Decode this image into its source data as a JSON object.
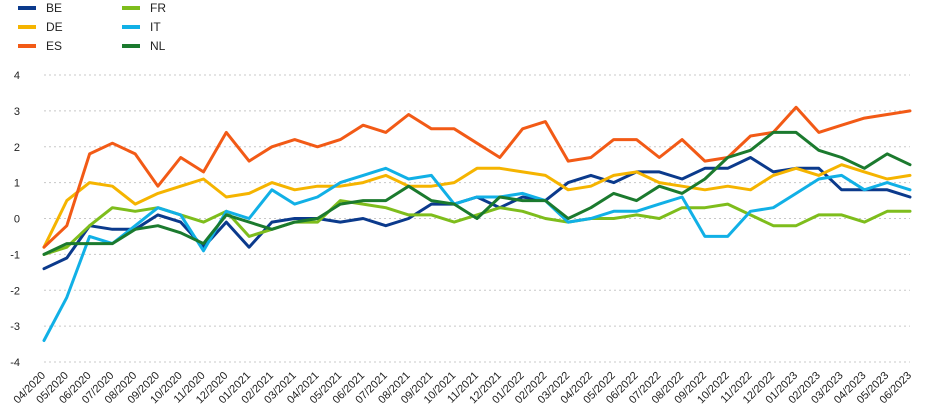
{
  "chart_data": {
    "type": "line",
    "title": "",
    "xlabel": "",
    "ylabel": "",
    "ylim": [
      -4,
      4
    ],
    "yticks": [
      4,
      3,
      2,
      1,
      0,
      -1,
      -2,
      -3,
      -4
    ],
    "grid": "horizontal dashed",
    "legend_position": "top-left",
    "x": [
      "04/2020",
      "05/2020",
      "06/2020",
      "07/2020",
      "08/2020",
      "09/2020",
      "10/2020",
      "11/2020",
      "12/2020",
      "01/2021",
      "02/2021",
      "03/2021",
      "04/2021",
      "05/2021",
      "06/2021",
      "07/2021",
      "08/2021",
      "09/2021",
      "10/2021",
      "11/2021",
      "12/2021",
      "01/2022",
      "02/2022",
      "03/2022",
      "04/2022",
      "05/2022",
      "06/2022",
      "07/2022",
      "08/2022",
      "09/2022",
      "10/2022",
      "11/2022",
      "12/2022",
      "01/2023",
      "02/2023",
      "03/2023",
      "04/2023",
      "05/2023",
      "06/2023"
    ],
    "x_labels_every": 1,
    "series": [
      {
        "name": "BE",
        "color": "#0b3a8c",
        "values": [
          -1.4,
          -1.1,
          -0.2,
          -0.3,
          -0.3,
          0.1,
          -0.1,
          -0.8,
          -0.1,
          -0.8,
          -0.1,
          0.0,
          0.0,
          -0.1,
          0.0,
          -0.2,
          0.0,
          0.4,
          0.4,
          0.6,
          0.3,
          0.6,
          0.5,
          1.0,
          1.2,
          1.0,
          1.3,
          1.3,
          1.1,
          1.4,
          1.4,
          1.7,
          1.3,
          1.4,
          1.4,
          0.8,
          0.8,
          0.8,
          0.6
        ]
      },
      {
        "name": "DE",
        "color": "#f5b400",
        "values": [
          -0.8,
          0.5,
          1.0,
          0.9,
          0.4,
          0.7,
          0.9,
          1.1,
          0.6,
          0.7,
          1.0,
          0.8,
          0.9,
          0.9,
          1.0,
          1.2,
          0.9,
          0.9,
          1.0,
          1.4,
          1.4,
          1.3,
          1.2,
          0.8,
          0.9,
          1.2,
          1.3,
          1.0,
          0.9,
          0.8,
          0.9,
          0.8,
          1.2,
          1.4,
          1.2,
          1.5,
          1.3,
          1.1,
          1.2
        ]
      },
      {
        "name": "ES",
        "color": "#f25a16",
        "values": [
          -0.8,
          -0.2,
          1.8,
          2.1,
          1.8,
          0.9,
          1.7,
          1.3,
          2.4,
          1.6,
          2.0,
          2.2,
          2.0,
          2.2,
          2.6,
          2.4,
          2.9,
          2.5,
          2.5,
          2.1,
          1.7,
          2.5,
          2.7,
          1.6,
          1.7,
          2.2,
          2.2,
          1.7,
          2.2,
          1.6,
          1.7,
          2.3,
          2.4,
          3.1,
          2.4,
          2.6,
          2.8,
          2.9,
          3.0
        ]
      },
      {
        "name": "FR",
        "color": "#7ebd1c",
        "values": [
          -1.0,
          -0.8,
          -0.2,
          0.3,
          0.2,
          0.3,
          0.1,
          -0.1,
          0.2,
          -0.5,
          -0.3,
          -0.1,
          -0.1,
          0.5,
          0.4,
          0.3,
          0.1,
          0.1,
          -0.1,
          0.1,
          0.3,
          0.2,
          0.0,
          -0.1,
          0.0,
          0.0,
          0.1,
          0.0,
          0.3,
          0.3,
          0.4,
          0.1,
          -0.2,
          -0.2,
          0.1,
          0.1,
          -0.1,
          0.2,
          0.2
        ]
      },
      {
        "name": "IT",
        "color": "#11b0e6",
        "values": [
          -3.4,
          -2.2,
          -0.5,
          -0.7,
          -0.2,
          0.3,
          0.1,
          -0.9,
          0.2,
          0.0,
          0.8,
          0.4,
          0.6,
          1.0,
          1.2,
          1.4,
          1.1,
          1.2,
          0.4,
          0.6,
          0.6,
          0.7,
          0.5,
          -0.1,
          0.0,
          0.2,
          0.2,
          0.4,
          0.6,
          -0.5,
          -0.5,
          0.2,
          0.3,
          0.7,
          1.1,
          1.2,
          0.8,
          1.0,
          0.8
        ]
      },
      {
        "name": "NL",
        "color": "#1b7a2e",
        "values": [
          -1.0,
          -0.7,
          -0.7,
          -0.7,
          -0.3,
          -0.2,
          -0.4,
          -0.7,
          0.1,
          -0.1,
          -0.3,
          -0.1,
          0.0,
          0.4,
          0.5,
          0.5,
          0.9,
          0.5,
          0.4,
          0.0,
          0.6,
          0.5,
          0.5,
          0.0,
          0.3,
          0.7,
          0.5,
          0.9,
          0.7,
          1.1,
          1.7,
          1.9,
          2.4,
          2.4,
          1.9,
          1.7,
          1.4,
          1.8,
          1.5
        ]
      }
    ]
  }
}
